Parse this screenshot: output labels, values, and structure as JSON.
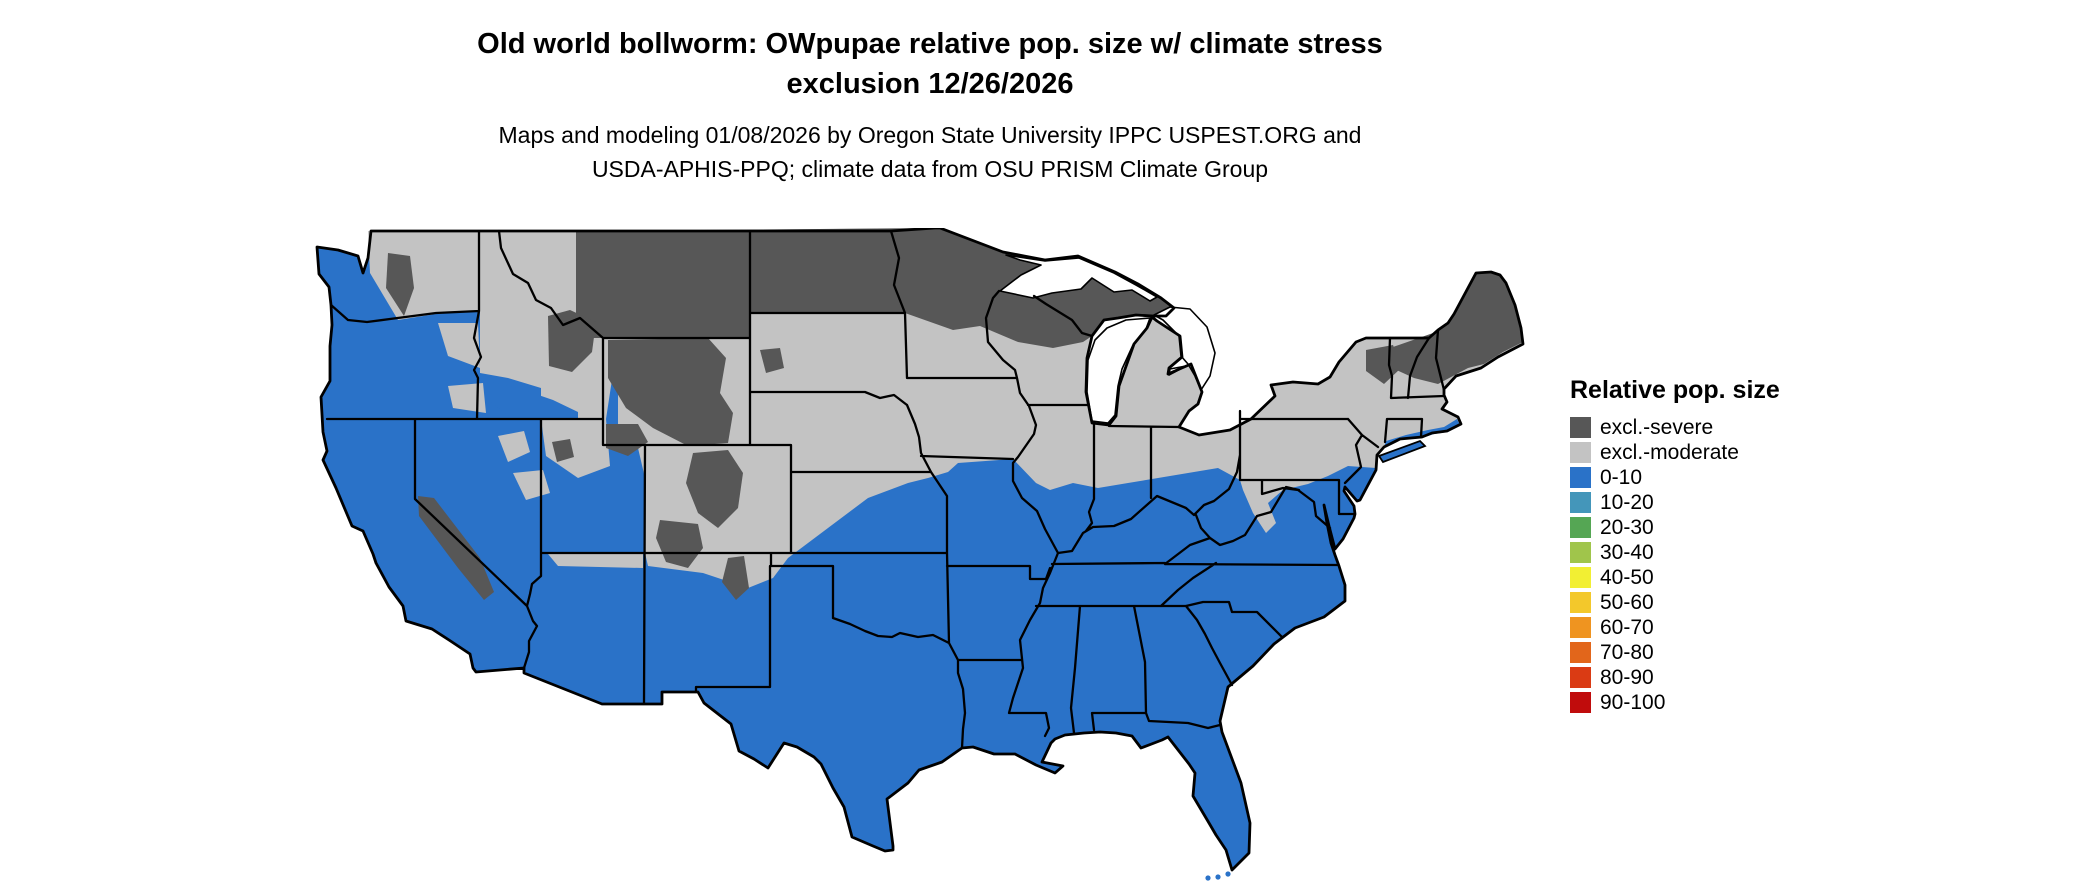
{
  "title": {
    "line1": "Old world bollworm: OWpupae relative pop. size w/ climate stress",
    "line2": "exclusion 12/26/2026"
  },
  "subtitle": {
    "line1": "Maps and modeling 01/08/2026 by Oregon State University IPPC USPEST.ORG and",
    "line2": "USDA-APHIS-PPQ; climate data from OSU PRISM Climate Group"
  },
  "map": {
    "area": "Conterminous United States",
    "visible_classes": [
      "excl.-severe",
      "excl.-moderate",
      "0-10"
    ]
  },
  "legend": {
    "title": "Relative pop. size",
    "items": [
      {
        "label": "excl.-severe",
        "color": "#575757"
      },
      {
        "label": "excl.-moderate",
        "color": "#c3c3c3"
      },
      {
        "label": "0-10",
        "color": "#2a72c8"
      },
      {
        "label": "10-20",
        "color": "#4496ba"
      },
      {
        "label": "20-30",
        "color": "#55a654"
      },
      {
        "label": "30-40",
        "color": "#a0c54b"
      },
      {
        "label": "40-50",
        "color": "#f2ef33"
      },
      {
        "label": "50-60",
        "color": "#f3c82b"
      },
      {
        "label": "60-70",
        "color": "#ef9420"
      },
      {
        "label": "70-80",
        "color": "#e2661b"
      },
      {
        "label": "80-90",
        "color": "#da3b14"
      },
      {
        "label": "90-100",
        "color": "#c00c0c"
      }
    ]
  }
}
